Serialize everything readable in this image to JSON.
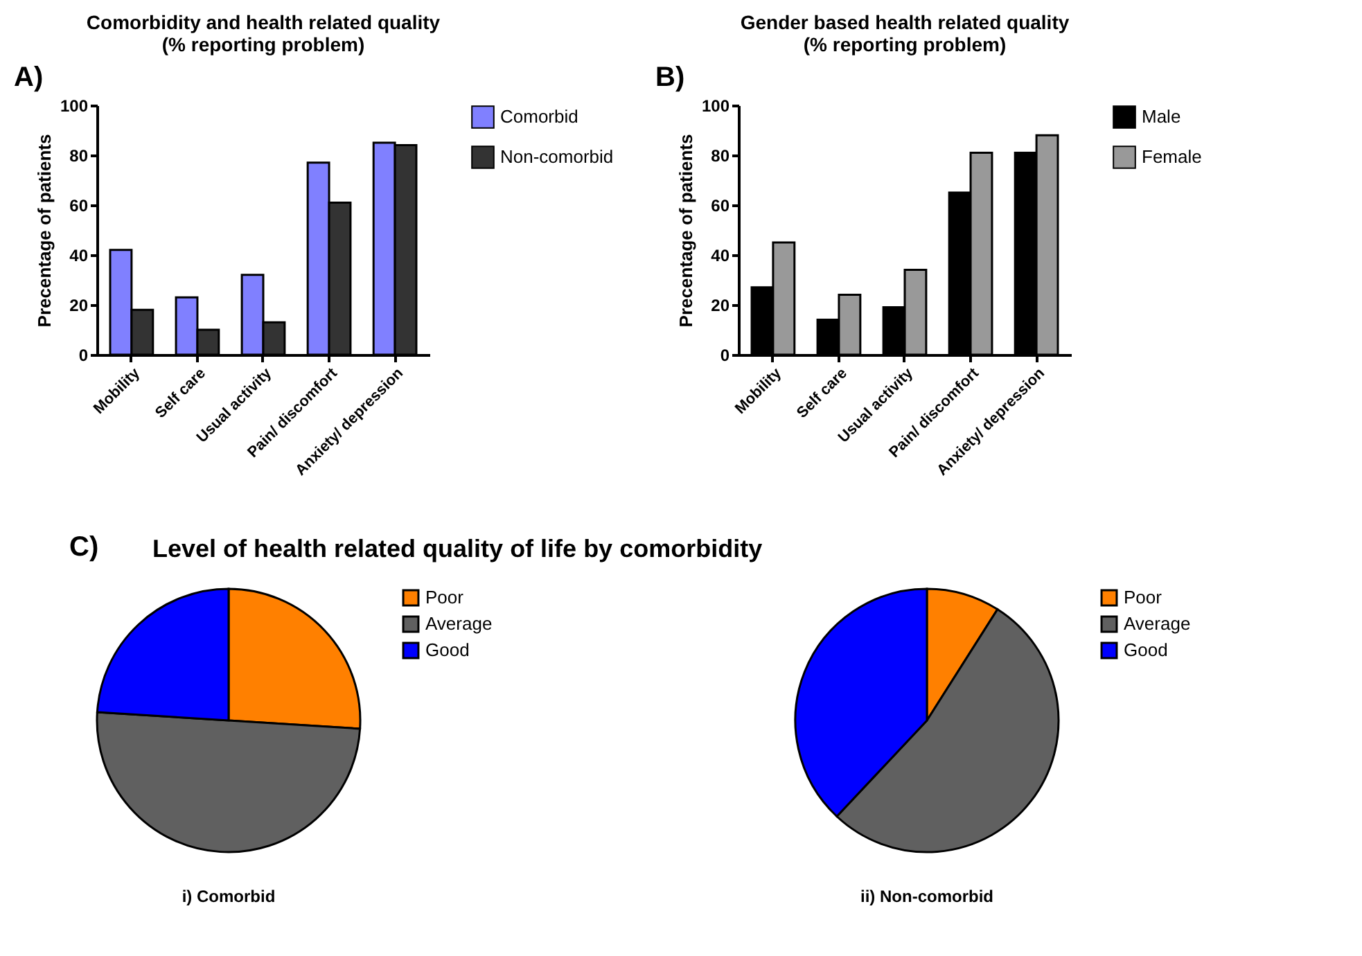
{
  "chart_data": [
    {
      "type": "bar",
      "title": "Comorbidity and health related quality\n(% reporting problem)",
      "ylabel": "Precentage of patients",
      "annotations": [
        "A)"
      ],
      "categories": [
        "Mobility",
        "Self care",
        "Usual activity",
        "Pain/ discomfort",
        "Anxiety/ depression"
      ],
      "ylim": [
        0,
        100
      ],
      "yticks": [
        0,
        20,
        40,
        60,
        80,
        100
      ],
      "legend": "top right",
      "series": [
        {
          "name": "Comorbid",
          "color": "#8080ff",
          "values": [
            42,
            23,
            32,
            77,
            85
          ]
        },
        {
          "name": "Non-comorbid",
          "color": "#333333",
          "values": [
            18,
            10,
            13,
            61,
            84
          ]
        }
      ]
    },
    {
      "type": "bar",
      "title": "Gender based health related quality\n(% reporting problem)",
      "ylabel": "Precentage of patients",
      "annotations": [
        "B)"
      ],
      "categories": [
        "Mobility",
        "Self care",
        "Usual activity",
        "Pain/ discomfort",
        "Anxiety/ depression"
      ],
      "ylim": [
        0,
        100
      ],
      "yticks": [
        0,
        20,
        40,
        60,
        80,
        100
      ],
      "legend": "top right",
      "series": [
        {
          "name": "Male",
          "color": "#000000",
          "values": [
            27,
            14,
            19,
            65,
            81
          ]
        },
        {
          "name": "Female",
          "color": "#999999",
          "values": [
            45,
            24,
            34,
            81,
            88
          ]
        }
      ]
    },
    {
      "type": "pie",
      "title": "i) Comorbid",
      "annotations": [
        "C)",
        "Level of health related quality of life by comorbidity"
      ],
      "legend": "top right",
      "categories": [
        "Poor",
        "Average",
        "Good"
      ],
      "values": [
        26,
        50,
        24
      ],
      "colors": [
        "#ff8000",
        "#606060",
        "#0000ff"
      ]
    },
    {
      "type": "pie",
      "title": "ii) Non-comorbid",
      "legend": "top right",
      "categories": [
        "Poor",
        "Average",
        "Good"
      ],
      "values": [
        9,
        53,
        38
      ],
      "colors": [
        "#ff8000",
        "#606060",
        "#0000ff"
      ]
    }
  ]
}
